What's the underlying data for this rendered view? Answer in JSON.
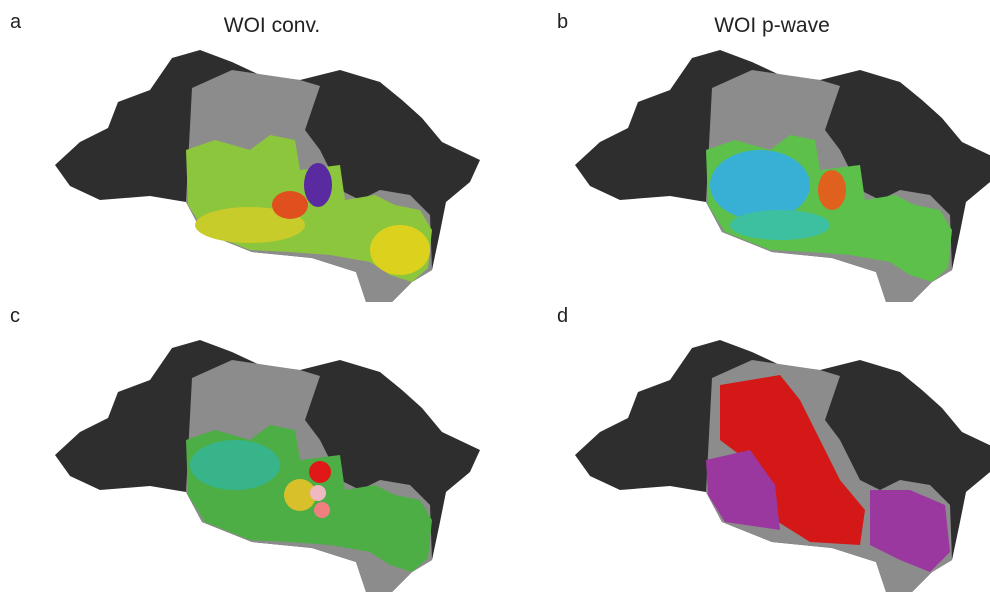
{
  "panels": [
    {
      "label": "a",
      "title": "WOI conv."
    },
    {
      "label": "b",
      "title": "WOI p-wave"
    },
    {
      "label": "c"
    },
    {
      "label": "d"
    }
  ]
}
